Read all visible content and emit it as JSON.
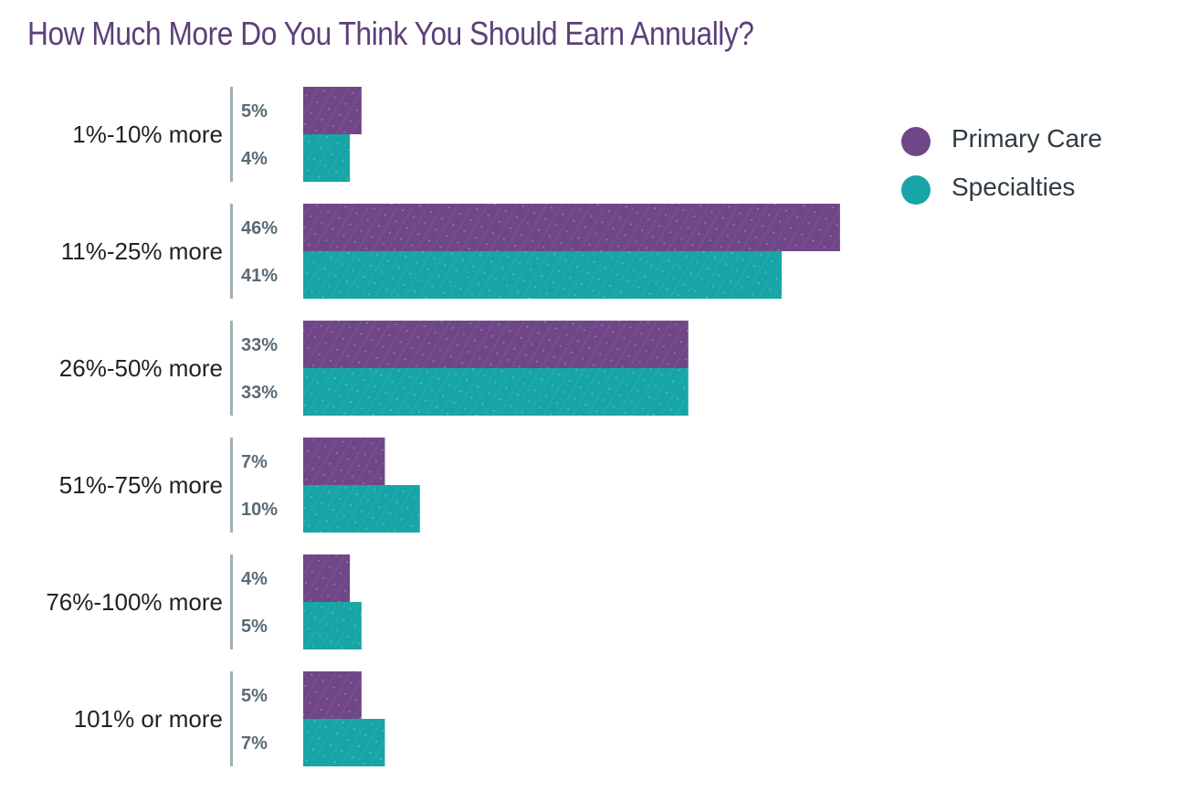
{
  "chart_data": {
    "type": "bar",
    "orientation": "horizontal",
    "title": "How Much More Do You Think You Should Earn Annually?",
    "categories": [
      "1%-10% more",
      "11%-25% more",
      "26%-50% more",
      "51%-75% more",
      "76%-100% more",
      "101% or more"
    ],
    "series": [
      {
        "name": "Primary Care",
        "color": "#6f4688",
        "values": [
          5,
          46,
          33,
          7,
          4,
          5
        ],
        "labels": [
          "5%",
          "46%",
          "33%",
          "7%",
          "4%",
          "5%"
        ]
      },
      {
        "name": "Specialties",
        "color": "#17a5a7",
        "values": [
          4,
          41,
          33,
          10,
          5,
          7
        ],
        "labels": [
          "4%",
          "41%",
          "33%",
          "10%",
          "5%",
          "7%"
        ]
      }
    ],
    "xlim": [
      0,
      46
    ],
    "legend_position": "top-right",
    "grid": false
  }
}
